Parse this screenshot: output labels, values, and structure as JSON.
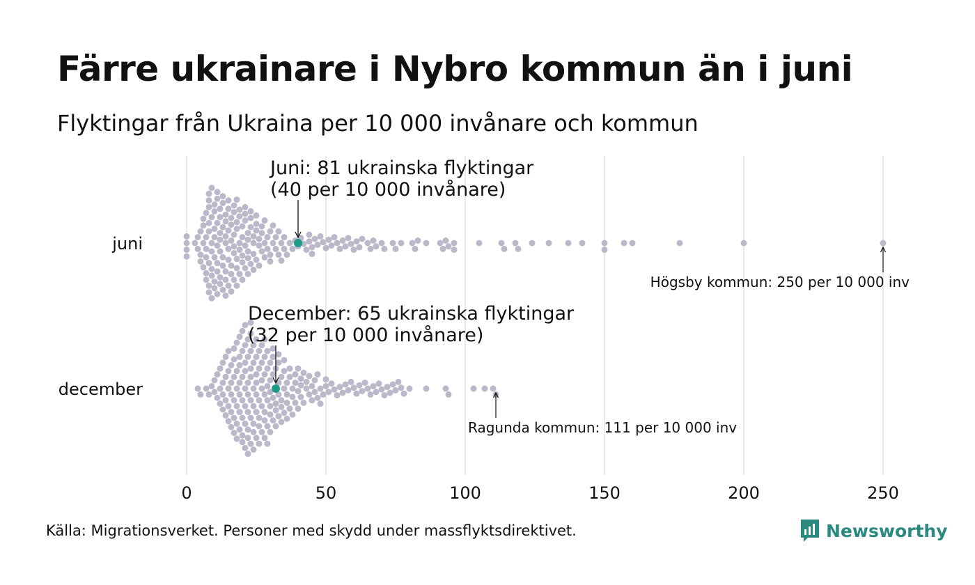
{
  "title": "Färre ukrainare i Nybro kommun än i juni",
  "subtitle": "Flyktingar från Ukraina per 10 000 invånare och kommun",
  "source": "Källa: Migrationsverket. Personer med skydd under massflyktsdirektivet.",
  "logo": {
    "text": "Newsworthy",
    "color": "#2a8a80"
  },
  "colors": {
    "dot": "#bbb9c9",
    "highlight": "#1f9a87",
    "grid": "#d3d3d3"
  },
  "chart_data": {
    "type": "scatter",
    "subtype": "beeswarm",
    "xlim": [
      0,
      250
    ],
    "ticks": [
      0,
      50,
      100,
      150,
      200,
      250
    ],
    "tick_labels": [
      "0",
      "50",
      "100",
      "150",
      "200",
      "250"
    ],
    "grid": true,
    "categories": [
      "juni",
      "december"
    ],
    "series": [
      {
        "category": "juni",
        "highlight": {
          "value": 40,
          "line1": "Juni: 81 ukrainska flyktingar",
          "line2": "(40 per 10 000 invånare)"
        },
        "max_annotation": {
          "value": 250,
          "text": "Högsby kommun: 250 per 10 000 inv"
        },
        "values": [
          0,
          0,
          0,
          0,
          3,
          4,
          4,
          5,
          5,
          5,
          6,
          6,
          6,
          6,
          7,
          7,
          7,
          7,
          7,
          7,
          8,
          8,
          8,
          8,
          8,
          8,
          8,
          8,
          9,
          9,
          9,
          9,
          9,
          9,
          9,
          10,
          10,
          10,
          10,
          10,
          10,
          10,
          11,
          11,
          11,
          11,
          11,
          11,
          11,
          12,
          12,
          12,
          12,
          12,
          12,
          12,
          13,
          13,
          13,
          13,
          13,
          13,
          14,
          14,
          14,
          14,
          14,
          14,
          14,
          15,
          15,
          15,
          15,
          15,
          15,
          16,
          16,
          16,
          16,
          16,
          16,
          17,
          17,
          17,
          17,
          17,
          17,
          18,
          18,
          18,
          18,
          18,
          18,
          19,
          19,
          19,
          19,
          19,
          20,
          20,
          20,
          20,
          20,
          21,
          21,
          21,
          21,
          21,
          22,
          22,
          22,
          22,
          22,
          23,
          23,
          23,
          23,
          24,
          24,
          24,
          24,
          25,
          25,
          25,
          25,
          26,
          26,
          26,
          27,
          27,
          27,
          28,
          28,
          28,
          29,
          29,
          30,
          30,
          30,
          31,
          31,
          32,
          32,
          33,
          33,
          34,
          34,
          35,
          35,
          36,
          37,
          38,
          39,
          40,
          41,
          42,
          43,
          44,
          44,
          45,
          45,
          46,
          47,
          48,
          49,
          50,
          51,
          52,
          53,
          54,
          55,
          56,
          57,
          58,
          59,
          60,
          61,
          62,
          63,
          65,
          66,
          67,
          68,
          70,
          71,
          74,
          75,
          77,
          81,
          82,
          83,
          86,
          91,
          92,
          93,
          94,
          96,
          96,
          105,
          113,
          114,
          118,
          119,
          124,
          130,
          137,
          142,
          150,
          150,
          157,
          160,
          177,
          200,
          250
        ]
      },
      {
        "category": "december",
        "highlight": {
          "value": 32,
          "line1": "December: 65 ukrainska flyktingar",
          "line2": "(32 per 10 000 invånare)"
        },
        "max_annotation": {
          "value": 111,
          "text": "Ragunda kommun: 111 per 10 000 inv"
        },
        "values": [
          4,
          5,
          7,
          8,
          9,
          10,
          10,
          11,
          11,
          12,
          12,
          12,
          13,
          13,
          13,
          13,
          14,
          14,
          14,
          14,
          15,
          15,
          15,
          15,
          15,
          16,
          16,
          16,
          16,
          16,
          17,
          17,
          17,
          17,
          17,
          17,
          18,
          18,
          18,
          18,
          18,
          18,
          19,
          19,
          19,
          19,
          19,
          19,
          19,
          20,
          20,
          20,
          20,
          20,
          20,
          20,
          21,
          21,
          21,
          21,
          21,
          21,
          21,
          21,
          22,
          22,
          22,
          22,
          22,
          22,
          22,
          22,
          23,
          23,
          23,
          23,
          23,
          23,
          23,
          23,
          24,
          24,
          24,
          24,
          24,
          24,
          24,
          25,
          25,
          25,
          25,
          25,
          25,
          25,
          26,
          26,
          26,
          26,
          26,
          26,
          27,
          27,
          27,
          27,
          27,
          27,
          28,
          28,
          28,
          28,
          28,
          28,
          28,
          29,
          29,
          29,
          29,
          29,
          29,
          30,
          30,
          30,
          30,
          30,
          30,
          31,
          31,
          31,
          31,
          31,
          32,
          32,
          32,
          32,
          32,
          33,
          33,
          33,
          33,
          33,
          34,
          34,
          34,
          34,
          35,
          35,
          35,
          35,
          36,
          36,
          36,
          36,
          37,
          37,
          37,
          38,
          38,
          38,
          39,
          39,
          39,
          40,
          40,
          40,
          41,
          41,
          41,
          42,
          42,
          43,
          43,
          44,
          44,
          45,
          45,
          46,
          46,
          47,
          47,
          48,
          48,
          49,
          50,
          50,
          51,
          52,
          53,
          54,
          55,
          56,
          57,
          58,
          59,
          60,
          61,
          62,
          63,
          64,
          65,
          66,
          67,
          68,
          69,
          70,
          71,
          72,
          73,
          74,
          75,
          76,
          77,
          78,
          80,
          86,
          93,
          94,
          103,
          107,
          110,
          111
        ]
      }
    ]
  }
}
